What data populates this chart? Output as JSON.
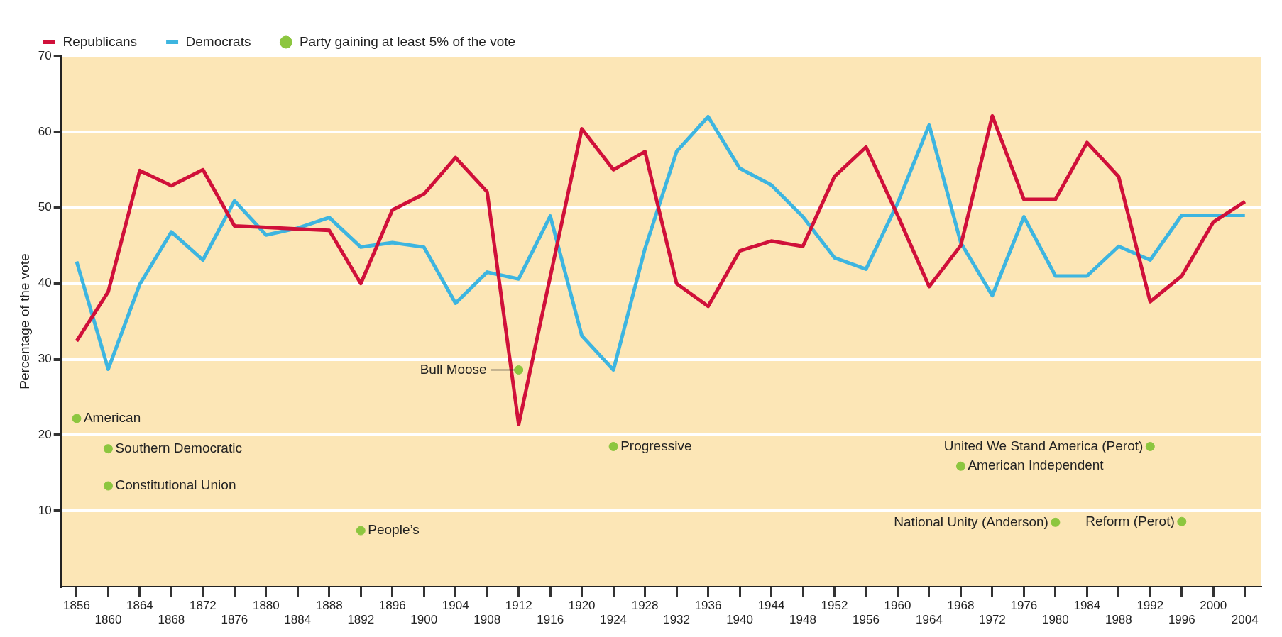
{
  "chart_data": {
    "type": "line",
    "ylabel": "Percentage of the vote",
    "categories": [
      "1856",
      "1860",
      "1864",
      "1868",
      "1872",
      "1876",
      "1880",
      "1884",
      "1888",
      "1892",
      "1896",
      "1900",
      "1904",
      "1908",
      "1912",
      "1916",
      "1920",
      "1924",
      "1928",
      "1932",
      "1936",
      "1940",
      "1944",
      "1948",
      "1952",
      "1956",
      "1960",
      "1964",
      "1968",
      "1972",
      "1976",
      "1980",
      "1984",
      "1988",
      "1992",
      "1996",
      "2000",
      "2004"
    ],
    "series": [
      {
        "name": "Republicans",
        "color": "#d0103a",
        "values": [
          32.4,
          38.9,
          54.9,
          52.9,
          55,
          47.6,
          47.4,
          47.2,
          47,
          40,
          49.7,
          51.8,
          56.6,
          52.1,
          21.4,
          40.9,
          60.4,
          55,
          57.4,
          40,
          37,
          44.3,
          45.6,
          44.9,
          54.1,
          58,
          49,
          39.6,
          45,
          62.1,
          51.1,
          51.1,
          58.6,
          54.1,
          37.6,
          41,
          48.1,
          50.8
        ]
      },
      {
        "name": "Democrats",
        "color": "#3db5e0",
        "values": [
          42.9,
          28.7,
          39.9,
          46.8,
          43.1,
          50.9,
          46.4,
          47.3,
          48.7,
          44.8,
          45.4,
          44.8,
          37.4,
          41.5,
          40.6,
          48.9,
          33.1,
          28.6,
          44.6,
          57.4,
          62,
          55.2,
          53,
          48.8,
          43.4,
          41.9,
          50.6,
          60.9,
          45.4,
          38.4,
          48.8,
          41,
          41,
          44.9,
          43.1,
          49,
          49,
          49
        ]
      },
      {
        "name": "Party gaining at least 5% of the vote",
        "type": "scatter",
        "marker": "circle",
        "color": "#8cc63f",
        "values": [
          22.2,
          18.2,
          null,
          null,
          null,
          null,
          null,
          null,
          null,
          7.4,
          null,
          null,
          null,
          null,
          28.6,
          null,
          null,
          18.5,
          null,
          null,
          null,
          null,
          null,
          null,
          null,
          null,
          null,
          null,
          15.9,
          null,
          null,
          8.5,
          null,
          null,
          18.5,
          8.6,
          null,
          null
        ]
      },
      {
        "type": "scatter",
        "marker": "circle",
        "color": "#8cc63f",
        "values": [
          null,
          13.3,
          null,
          null,
          null,
          null,
          null,
          null,
          null,
          null,
          null,
          null,
          null,
          null,
          null,
          null,
          null,
          null,
          null,
          null,
          null,
          null,
          null,
          null,
          null,
          null,
          null,
          null,
          null,
          null,
          null,
          null,
          null,
          null,
          null,
          null,
          null,
          null
        ]
      }
    ],
    "annotations": [
      {
        "text": "American",
        "x": "1856",
        "y": 22.2
      },
      {
        "text": "Southern Democratic",
        "x": "1860",
        "y": 18.2
      },
      {
        "text": "Constitutional Union",
        "x": "1860",
        "y": 13.3
      },
      {
        "text": "People’s",
        "x": "1892",
        "y": 7.4
      },
      {
        "text": "Bull Moose",
        "x": "1912",
        "y": 28.6
      },
      {
        "text": "Progressive",
        "x": "1924",
        "y": 18.5
      },
      {
        "text": "American Independent",
        "x": "1968",
        "y": 15.9
      },
      {
        "text": "National Unity (Anderson)",
        "x": "1980",
        "y": 8.5
      },
      {
        "text": "United We Stand America (Perot)",
        "x": "1992",
        "y": 18.5
      },
      {
        "text": "Reform (Perot)",
        "x": "1996",
        "y": 8.6
      }
    ],
    "ylim": [
      0,
      70
    ],
    "yticks": [
      10,
      20,
      30,
      40,
      50,
      60,
      70
    ],
    "grid": "y",
    "legend": "top left",
    "line_style": "solid"
  }
}
